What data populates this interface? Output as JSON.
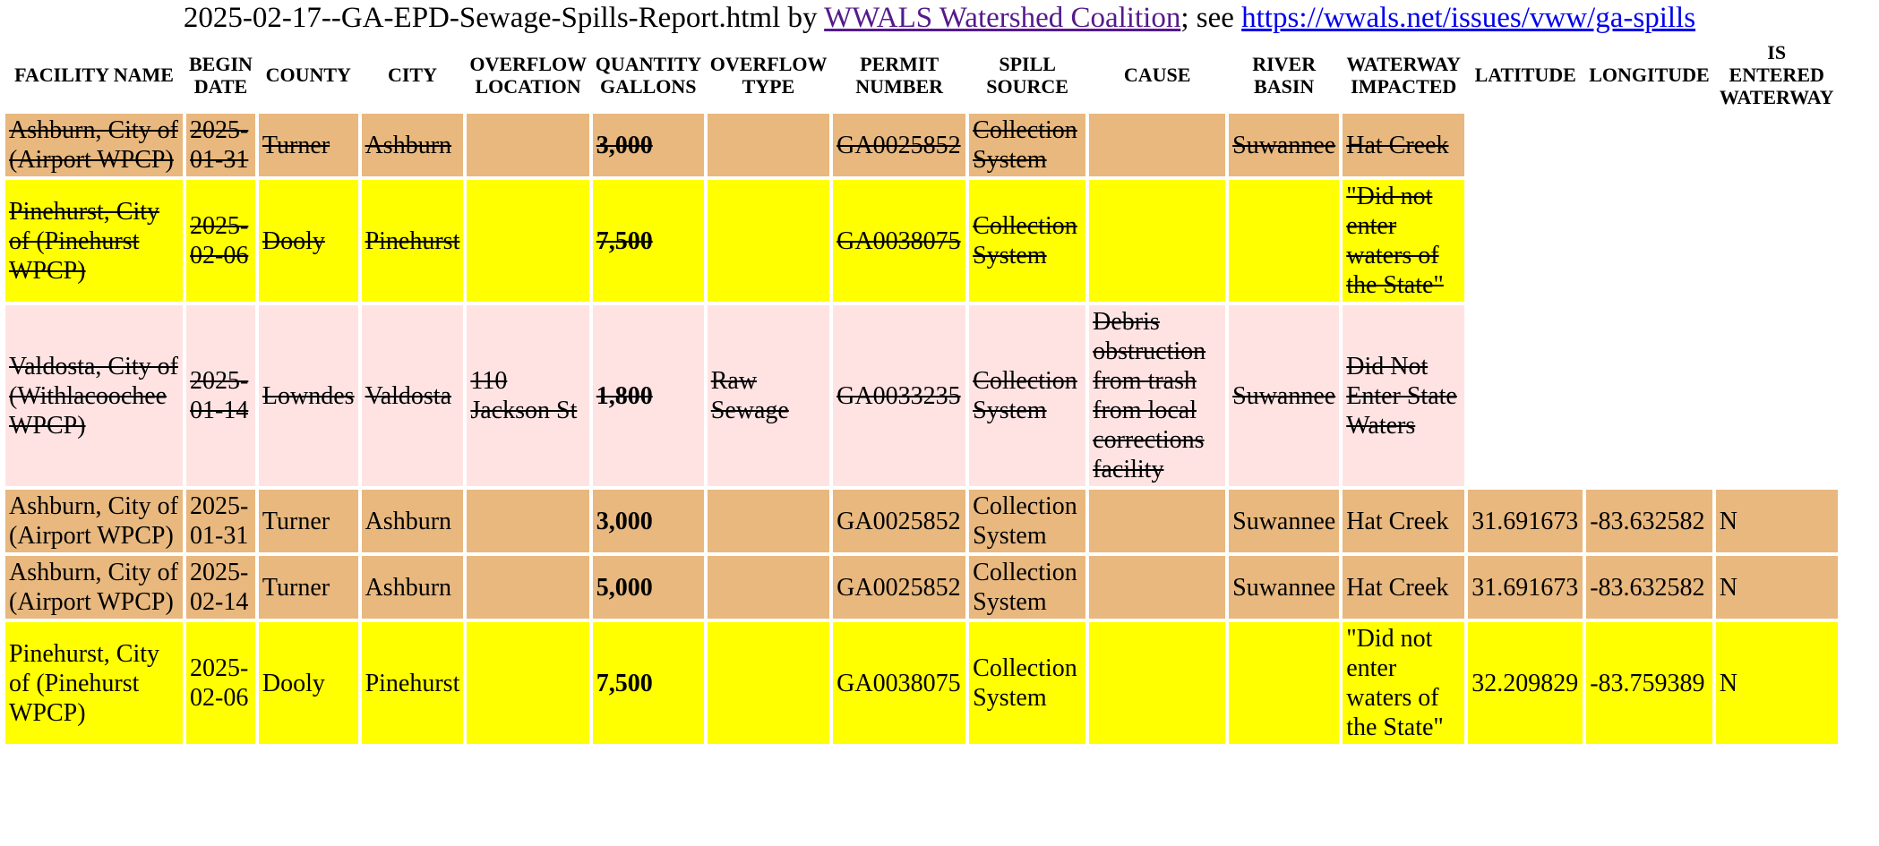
{
  "report": {
    "filename": "2025-02-17--GA-EPD-Sewage-Spills-Report.html",
    "by": " by ",
    "org_link": "WWALS Watershed Coalition",
    "see": "; see ",
    "url_link": "https://wwals.net/issues/vww/ga-spills"
  },
  "colors": {
    "tan": "#e8b87e",
    "yellow": "#ffff00",
    "pink": "#ffe3e3",
    "visited_link": "#551a8b",
    "link": "#0000ee"
  },
  "headers": [
    "FACILITY NAME",
    "BEGIN DATE",
    "COUNTY",
    "CITY",
    "OVERFLOW LOCATION",
    "QUANTITY GALLONS",
    "OVERFLOW TYPE",
    "PERMIT NUMBER",
    "SPILL SOURCE",
    "CAUSE",
    "RIVER BASIN",
    "WATERWAY IMPACTED",
    "LATITUDE",
    "LONGITUDE",
    "IS ENTERED WATERWAY"
  ],
  "rows": [
    {
      "struck": true,
      "color": "tan",
      "cells": [
        "Ashburn, City of (Airport WPCP)",
        "2025-01-31",
        "Turner",
        "Ashburn",
        "",
        "3,000",
        "",
        "GA0025852",
        "Collection System",
        "",
        "Suwannee",
        "Hat Creek",
        "",
        "",
        ""
      ]
    },
    {
      "struck": true,
      "color": "yellow",
      "cells": [
        "Pinehurst, City of (Pinehurst WPCP)",
        "2025-02-06",
        "Dooly",
        "Pinehurst",
        "",
        "7,500",
        "",
        "GA0038075",
        "Collection System",
        "",
        "",
        "\"Did not enter waters of the State\"",
        "",
        "",
        ""
      ]
    },
    {
      "struck": true,
      "color": "pink",
      "cells": [
        "Valdosta, City of (Withlacoochee WPCP)",
        "2025-01-14",
        "Lowndes",
        "Valdosta",
        "110 Jackson St",
        "1,800",
        "Raw Sewage",
        "GA0033235",
        "Collection System",
        "Debris obstruction from trash from local corrections facility",
        "Suwannee",
        "Did Not Enter State Waters",
        "",
        "",
        ""
      ]
    },
    {
      "struck": false,
      "color": "tan",
      "cells": [
        "Ashburn, City of (Airport WPCP)",
        "2025-01-31",
        "Turner",
        "Ashburn",
        "",
        "3,000",
        "",
        "GA0025852",
        "Collection System",
        "",
        "Suwannee",
        "Hat Creek",
        "31.691673",
        "-83.632582",
        "N"
      ]
    },
    {
      "struck": false,
      "color": "tan",
      "cells": [
        "Ashburn, City of (Airport WPCP)",
        "2025-02-14",
        "Turner",
        "Ashburn",
        "",
        "5,000",
        "",
        "GA0025852",
        "Collection System",
        "",
        "Suwannee",
        "Hat Creek",
        "31.691673",
        "-83.632582",
        "N"
      ]
    },
    {
      "struck": false,
      "color": "yellow",
      "cells": [
        "Pinehurst, City of (Pinehurst WPCP)",
        "2025-02-06",
        "Dooly",
        "Pinehurst",
        "",
        "7,500",
        "",
        "GA0038075",
        "Collection System",
        "",
        "",
        "\"Did not enter waters of the State\"",
        "32.209829",
        "-83.759389",
        "N"
      ]
    }
  ]
}
